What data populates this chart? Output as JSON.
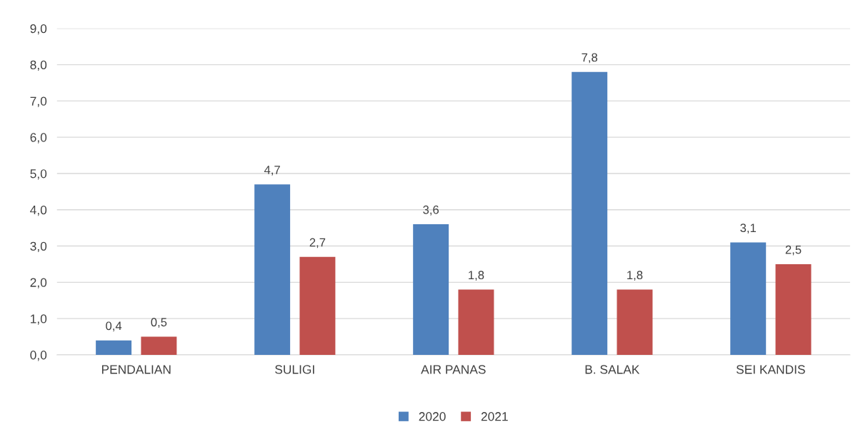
{
  "chart_data": {
    "type": "bar",
    "categories": [
      "PENDALIAN",
      "SULIGI",
      "AIR PANAS",
      "B. SALAK",
      "SEI KANDIS"
    ],
    "series": [
      {
        "name": "2020",
        "color": "#4f81bd",
        "values": [
          0.4,
          4.7,
          3.6,
          7.8,
          3.1
        ],
        "value_labels": [
          "0,4",
          "4,7",
          "3,6",
          "7,8",
          "3,1"
        ]
      },
      {
        "name": "2021",
        "color": "#c0504d",
        "values": [
          0.5,
          2.7,
          1.8,
          1.8,
          2.5
        ],
        "value_labels": [
          "0,5",
          "2,7",
          "1,8",
          "1,8",
          "2,5"
        ]
      }
    ],
    "ylim": [
      0,
      9
    ],
    "yticks": [
      {
        "value": 0,
        "label": "0,0"
      },
      {
        "value": 1,
        "label": "1,0"
      },
      {
        "value": 2,
        "label": "2,0"
      },
      {
        "value": 3,
        "label": "3,0"
      },
      {
        "value": 4,
        "label": "4,0"
      },
      {
        "value": 5,
        "label": "5,0"
      },
      {
        "value": 6,
        "label": "6,0"
      },
      {
        "value": 7,
        "label": "7,0"
      },
      {
        "value": 8,
        "label": "8,0"
      },
      {
        "value": 9,
        "label": "9,0"
      }
    ],
    "grid": "y",
    "legend": "bottom"
  }
}
